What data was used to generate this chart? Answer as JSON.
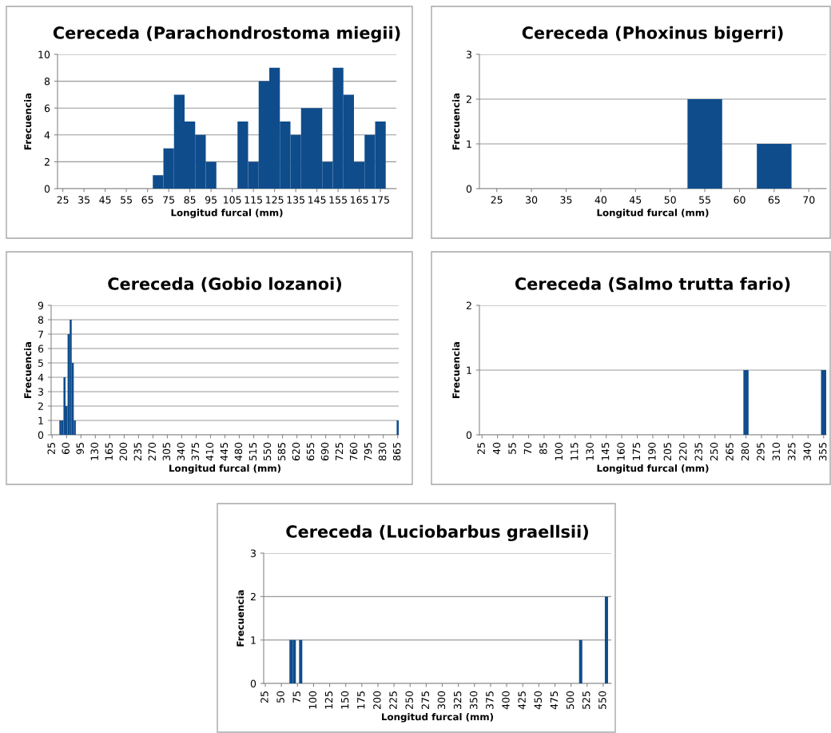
{
  "chart_data": [
    {
      "type": "bar",
      "title": "Cereceda (Parachondrostoma miegii)",
      "xlabel": "Longitud furcal (mm)",
      "ylabel": "Frecuencia",
      "color": "#0f4c8c",
      "grid": "y",
      "ylim": [
        0,
        10
      ],
      "yticks": [
        0,
        2,
        4,
        6,
        8,
        10
      ],
      "categories": [
        "25",
        null,
        "35",
        null,
        "45",
        null,
        "55",
        null,
        "65",
        null,
        "75",
        null,
        "85",
        null,
        "95",
        null,
        "105",
        null,
        "115",
        null,
        "125",
        null,
        "135",
        null,
        "145",
        null,
        "155",
        null,
        "165",
        null,
        "175",
        null
      ],
      "values": [
        0,
        0,
        0,
        0,
        0,
        0,
        0,
        0,
        0,
        1,
        3,
        7,
        5,
        4,
        2,
        0,
        0,
        5,
        2,
        8,
        9,
        5,
        4,
        6,
        6,
        2,
        9,
        7,
        2,
        4,
        5,
        0
      ]
    },
    {
      "type": "bar",
      "title": "Cereceda (Phoxinus bigerri)",
      "xlabel": "Longitud furcal (mm)",
      "ylabel": "Frecuencia",
      "color": "#0f4c8c",
      "grid": "y",
      "ylim": [
        0,
        3
      ],
      "yticks": [
        0,
        1,
        2,
        3
      ],
      "categories": [
        "25",
        "30",
        "35",
        "40",
        "45",
        "50",
        "55",
        "60",
        "65",
        "70"
      ],
      "values": [
        0,
        0,
        0,
        0,
        0,
        0,
        2,
        0,
        1,
        0
      ]
    },
    {
      "type": "bar",
      "title": "Cereceda (Gobio lozanoi)",
      "xlabel": "Longitud furcal (mm)",
      "ylabel": "Frecuencia",
      "color": "#0f4c8c",
      "grid": "y",
      "ylim": [
        0,
        9
      ],
      "yticks": [
        0,
        1,
        2,
        3,
        4,
        5,
        6,
        7,
        8,
        9
      ],
      "categories": [
        "25",
        null,
        null,
        null,
        null,
        null,
        null,
        "60",
        null,
        null,
        null,
        null,
        null,
        null,
        "95",
        null,
        null,
        null,
        null,
        null,
        null,
        "130",
        null,
        null,
        null,
        null,
        null,
        null,
        "165",
        null,
        null,
        null,
        null,
        null,
        null,
        "200",
        null,
        null,
        null,
        null,
        null,
        null,
        "235",
        null,
        null,
        null,
        null,
        null,
        null,
        "270",
        null,
        null,
        null,
        null,
        null,
        null,
        "305",
        null,
        null,
        null,
        null,
        null,
        null,
        "340",
        null,
        null,
        null,
        null,
        null,
        null,
        "375",
        null,
        null,
        null,
        null,
        null,
        null,
        "410",
        null,
        null,
        null,
        null,
        null,
        null,
        "445",
        null,
        null,
        null,
        null,
        null,
        null,
        "480",
        null,
        null,
        null,
        null,
        null,
        null,
        "515",
        null,
        null,
        null,
        null,
        null,
        null,
        "550",
        null,
        null,
        null,
        null,
        null,
        null,
        "585",
        null,
        null,
        null,
        null,
        null,
        null,
        "620",
        null,
        null,
        null,
        null,
        null,
        null,
        "655",
        null,
        null,
        null,
        null,
        null,
        null,
        "690",
        null,
        null,
        null,
        null,
        null,
        null,
        "725",
        null,
        null,
        null,
        null,
        null,
        null,
        "760",
        null,
        null,
        null,
        null,
        null,
        null,
        "795",
        null,
        null,
        null,
        null,
        null,
        null,
        "830",
        null,
        null,
        null,
        null,
        null,
        null,
        "865"
      ],
      "values": [
        0,
        0,
        0,
        0,
        1,
        1,
        4,
        2,
        7,
        8,
        5,
        1,
        0,
        0,
        0,
        0,
        0,
        0,
        0,
        0,
        0,
        0,
        0,
        0,
        0,
        0,
        0,
        0,
        0,
        0,
        0,
        0,
        0,
        0,
        0,
        0,
        0,
        0,
        0,
        0,
        0,
        0,
        0,
        0,
        0,
        0,
        0,
        0,
        0,
        0,
        0,
        0,
        0,
        0,
        0,
        0,
        0,
        0,
        0,
        0,
        0,
        0,
        0,
        0,
        0,
        0,
        0,
        0,
        0,
        0,
        0,
        0,
        0,
        0,
        0,
        0,
        0,
        0,
        0,
        0,
        0,
        0,
        0,
        0,
        0,
        0,
        0,
        0,
        0,
        0,
        0,
        0,
        0,
        0,
        0,
        0,
        0,
        0,
        0,
        0,
        0,
        0,
        0,
        0,
        0,
        0,
        0,
        0,
        0,
        0,
        0,
        0,
        0,
        0,
        0,
        0,
        0,
        0,
        0,
        0,
        0,
        0,
        0,
        0,
        0,
        0,
        0,
        0,
        0,
        0,
        0,
        0,
        0,
        0,
        0,
        0,
        0,
        0,
        0,
        0,
        0,
        0,
        0,
        0,
        0,
        0,
        0,
        0,
        0,
        0,
        0,
        0,
        0,
        0,
        0,
        0,
        0,
        0,
        0,
        0,
        0,
        0,
        0,
        0,
        0,
        0,
        0,
        0,
        1
      ]
    },
    {
      "type": "bar",
      "title": "Cereceda (Salmo trutta fario)",
      "xlabel": "Longitud furcal (mm)",
      "ylabel": "Frecuencia",
      "color": "#0f4c8c",
      "grid": "y",
      "ylim": [
        0,
        2
      ],
      "yticks": [
        0,
        1,
        2
      ],
      "categories": [
        "25",
        null,
        null,
        "40",
        null,
        null,
        "55",
        null,
        null,
        "70",
        null,
        null,
        "85",
        null,
        null,
        "100",
        null,
        null,
        "115",
        null,
        null,
        "130",
        null,
        null,
        "145",
        null,
        null,
        "160",
        null,
        null,
        "175",
        null,
        null,
        "190",
        null,
        null,
        "205",
        null,
        null,
        "220",
        null,
        null,
        "235",
        null,
        null,
        "250",
        null,
        null,
        "265",
        null,
        null,
        "280",
        null,
        null,
        "295",
        null,
        null,
        "310",
        null,
        null,
        "325",
        null,
        null,
        "340",
        null,
        null,
        "355"
      ],
      "values": [
        0,
        0,
        0,
        0,
        0,
        0,
        0,
        0,
        0,
        0,
        0,
        0,
        0,
        0,
        0,
        0,
        0,
        0,
        0,
        0,
        0,
        0,
        0,
        0,
        0,
        0,
        0,
        0,
        0,
        0,
        0,
        0,
        0,
        0,
        0,
        0,
        0,
        0,
        0,
        0,
        0,
        0,
        0,
        0,
        0,
        0,
        0,
        0,
        0,
        0,
        0,
        1,
        0,
        0,
        0,
        0,
        0,
        0,
        0,
        0,
        0,
        0,
        0,
        0,
        0,
        0,
        1
      ]
    },
    {
      "type": "bar",
      "title": "Cereceda (Luciobarbus graellsii)",
      "xlabel": "Longitud furcal (mm)",
      "ylabel": "Frecuencia",
      "color": "#0f4c8c",
      "grid": "y",
      "ylim": [
        0,
        3
      ],
      "yticks": [
        0,
        1,
        2,
        3
      ],
      "categories": [
        "25",
        null,
        null,
        null,
        null,
        "50",
        null,
        null,
        null,
        null,
        "75",
        null,
        null,
        null,
        null,
        "100",
        null,
        null,
        null,
        null,
        "125",
        null,
        null,
        null,
        null,
        "150",
        null,
        null,
        null,
        null,
        "175",
        null,
        null,
        null,
        null,
        "200",
        null,
        null,
        null,
        null,
        "225",
        null,
        null,
        null,
        null,
        "250",
        null,
        null,
        null,
        null,
        "275",
        null,
        null,
        null,
        null,
        "300",
        null,
        null,
        null,
        null,
        "325",
        null,
        null,
        null,
        null,
        "350",
        null,
        null,
        null,
        null,
        "375",
        null,
        null,
        null,
        null,
        "400",
        null,
        null,
        null,
        null,
        "425",
        null,
        null,
        null,
        null,
        "450",
        null,
        null,
        null,
        null,
        "475",
        null,
        null,
        null,
        null,
        "500",
        null,
        null,
        null,
        null,
        "525",
        null,
        null,
        null,
        null,
        "550",
        null,
        null
      ],
      "values": [
        0,
        0,
        0,
        0,
        0,
        0,
        0,
        0,
        1,
        1,
        0,
        1,
        0,
        0,
        0,
        0,
        0,
        0,
        0,
        0,
        0,
        0,
        0,
        0,
        0,
        0,
        0,
        0,
        0,
        0,
        0,
        0,
        0,
        0,
        0,
        0,
        0,
        0,
        0,
        0,
        0,
        0,
        0,
        0,
        0,
        0,
        0,
        0,
        0,
        0,
        0,
        0,
        0,
        0,
        0,
        0,
        0,
        0,
        0,
        0,
        0,
        0,
        0,
        0,
        0,
        0,
        0,
        0,
        0,
        0,
        0,
        0,
        0,
        0,
        0,
        0,
        0,
        0,
        0,
        0,
        0,
        0,
        0,
        0,
        0,
        0,
        0,
        0,
        0,
        0,
        0,
        0,
        0,
        0,
        0,
        0,
        0,
        0,
        1,
        0,
        0,
        0,
        0,
        0,
        0,
        0,
        2,
        0
      ]
    }
  ]
}
